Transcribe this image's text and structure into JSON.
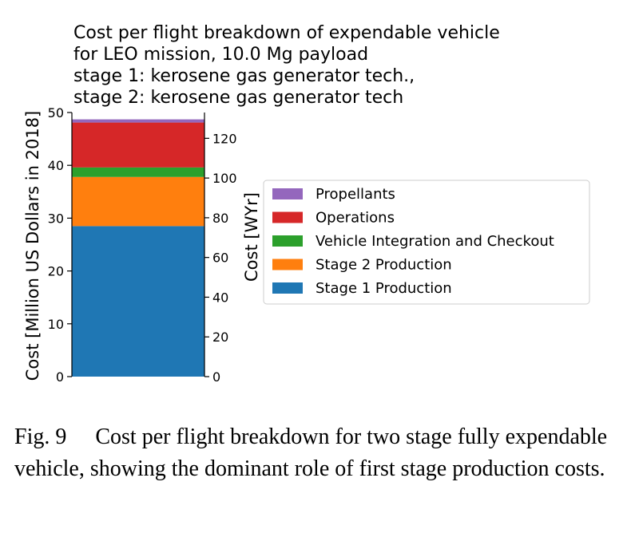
{
  "chart_data": {
    "type": "bar",
    "stacked": true,
    "title": [
      "Cost per flight breakdown of expendable vehicle",
      " for LEO mission, 10.0 Mg payload",
      " stage 1: kerosene gas generator tech.,",
      " stage 2: kerosene gas generator tech"
    ],
    "ylabel": "Cost [Million US Dollars in 2018]",
    "ylabel_right": "Cost [WYr]",
    "ylim": [
      0,
      50
    ],
    "ylim_right": [
      0,
      133
    ],
    "yticks": [
      0,
      10,
      20,
      30,
      40,
      50
    ],
    "yticks_right": [
      0,
      20,
      40,
      60,
      80,
      100,
      120
    ],
    "categories": [
      ""
    ],
    "legend_position": "right",
    "series": [
      {
        "name": "Stage 1 Production",
        "values": [
          28.5
        ],
        "color": "#1f77b4"
      },
      {
        "name": "Stage 2 Production",
        "values": [
          9.3
        ],
        "color": "#ff7f0e"
      },
      {
        "name": "Vehicle Integration and Checkout",
        "values": [
          1.8
        ],
        "color": "#2ca02c"
      },
      {
        "name": "Operations",
        "values": [
          8.5
        ],
        "color": "#d62728"
      },
      {
        "name": "Propellants",
        "values": [
          0.6
        ],
        "color": "#9467bd"
      }
    ]
  },
  "caption": {
    "label": "Fig. 9",
    "text": "Cost per flight breakdown for two stage fully expendable vehicle, showing the dominant role of first stage production costs."
  }
}
